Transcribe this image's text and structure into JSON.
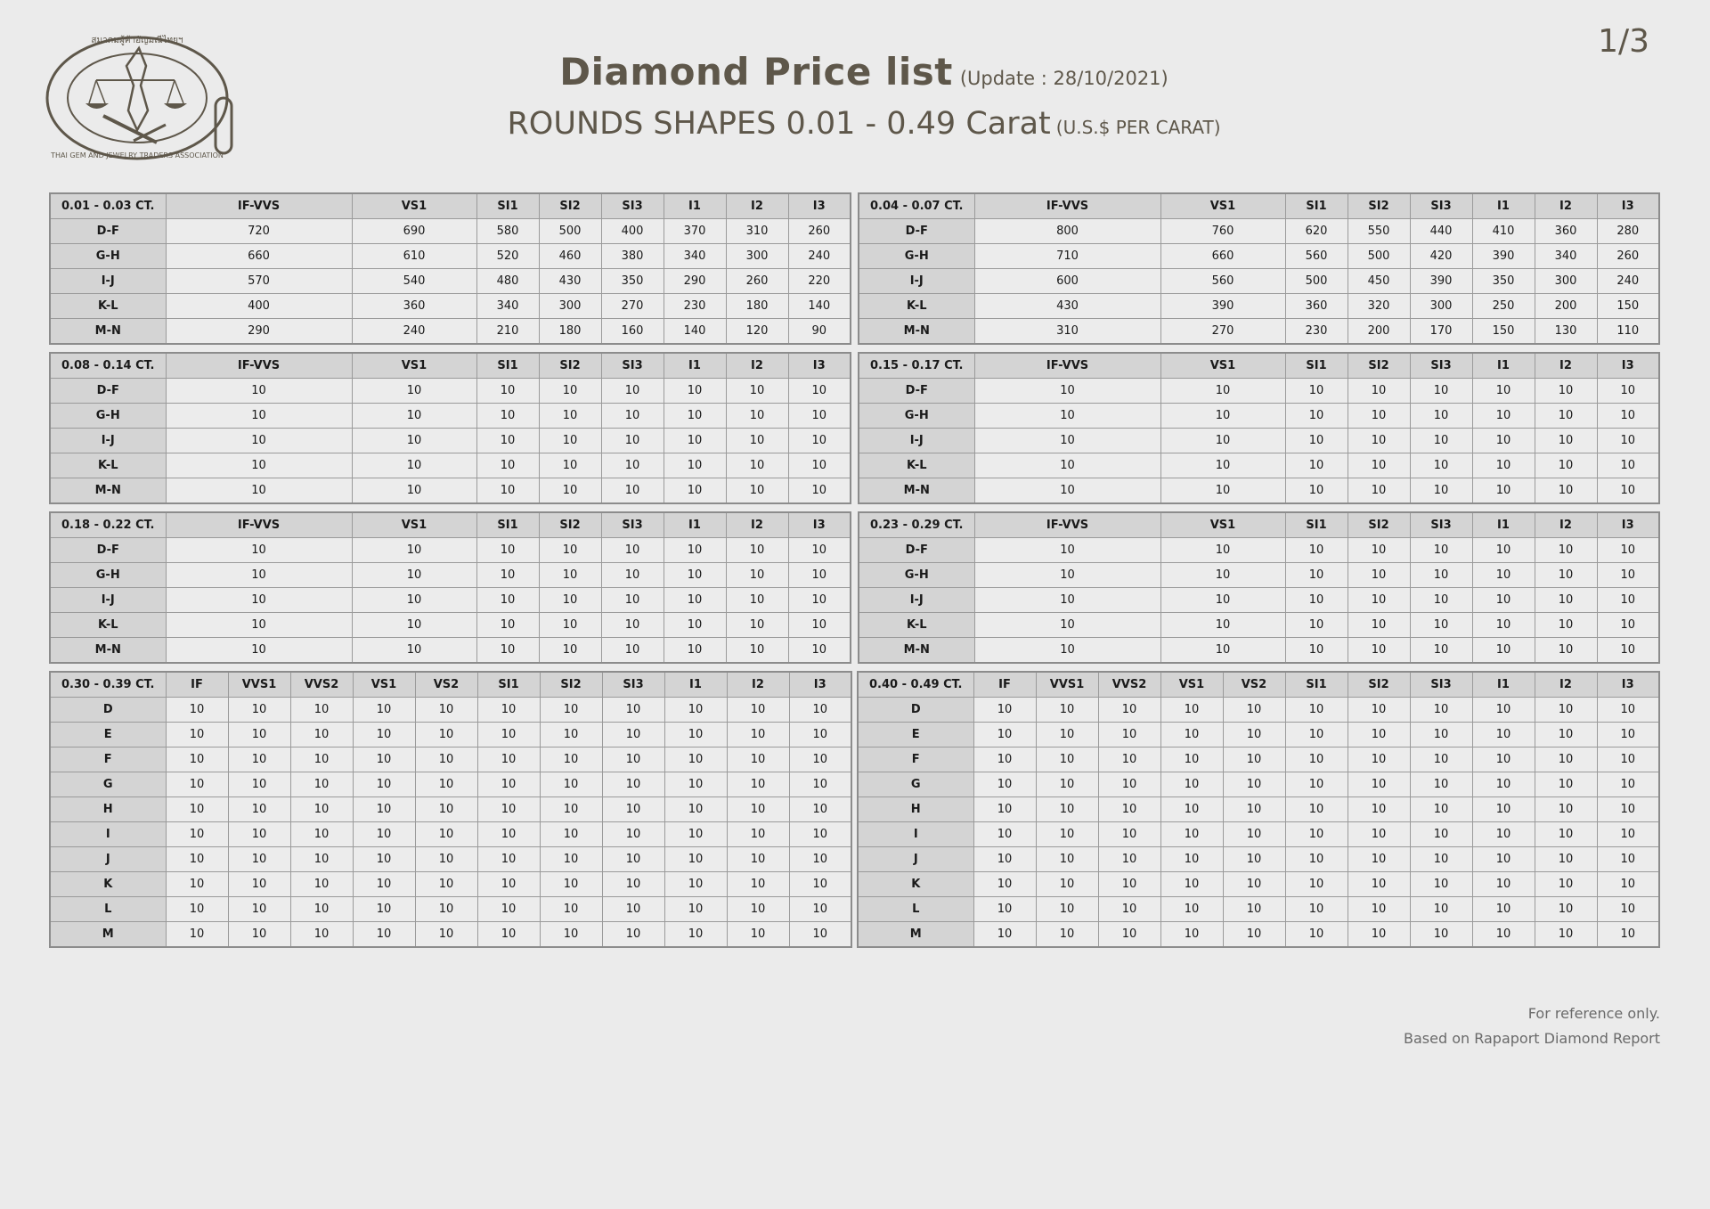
{
  "page_number": "1/3",
  "logo": {
    "top_text": "สมาคมผู้ค้าอัญมณีไทยและเครื่องประดับ",
    "bottom_text": "THAI GEM AND JEWELRY TRADERS ASSOCIATION"
  },
  "header": {
    "title": "Diamond Price list",
    "update": "(Update : 28/10/2021)",
    "subtitle": "ROUNDS SHAPES 0.01 - 0.49 Carat",
    "unit": "(U.S.$ PER CARAT)"
  },
  "tables": [
    {
      "range": "0.01 - 0.03 CT.",
      "cols": [
        "IF-VVS",
        "VS1",
        "SI1",
        "SI2",
        "SI3",
        "I1",
        "I2",
        "I3"
      ],
      "rows": [
        {
          "label": "D-F",
          "values": [
            "720",
            "690",
            "580",
            "500",
            "400",
            "370",
            "310",
            "260"
          ]
        },
        {
          "label": "G-H",
          "values": [
            "660",
            "610",
            "520",
            "460",
            "380",
            "340",
            "300",
            "240"
          ]
        },
        {
          "label": "I-J",
          "values": [
            "570",
            "540",
            "480",
            "430",
            "350",
            "290",
            "260",
            "220"
          ]
        },
        {
          "label": "K-L",
          "values": [
            "400",
            "360",
            "340",
            "300",
            "270",
            "230",
            "180",
            "140"
          ]
        },
        {
          "label": "M-N",
          "values": [
            "290",
            "240",
            "210",
            "180",
            "160",
            "140",
            "120",
            "90"
          ]
        }
      ]
    },
    {
      "range": "0.04 - 0.07 CT.",
      "cols": [
        "IF-VVS",
        "VS1",
        "SI1",
        "SI2",
        "SI3",
        "I1",
        "I2",
        "I3"
      ],
      "rows": [
        {
          "label": "D-F",
          "values": [
            "800",
            "760",
            "620",
            "550",
            "440",
            "410",
            "360",
            "280"
          ]
        },
        {
          "label": "G-H",
          "values": [
            "710",
            "660",
            "560",
            "500",
            "420",
            "390",
            "340",
            "260"
          ]
        },
        {
          "label": "I-J",
          "values": [
            "600",
            "560",
            "500",
            "450",
            "390",
            "350",
            "300",
            "240"
          ]
        },
        {
          "label": "K-L",
          "values": [
            "430",
            "390",
            "360",
            "320",
            "300",
            "250",
            "200",
            "150"
          ]
        },
        {
          "label": "M-N",
          "values": [
            "310",
            "270",
            "230",
            "200",
            "170",
            "150",
            "130",
            "110"
          ]
        }
      ]
    },
    {
      "range": "0.08 - 0.14 CT.",
      "cols": [
        "IF-VVS",
        "VS1",
        "SI1",
        "SI2",
        "SI3",
        "I1",
        "I2",
        "I3"
      ],
      "rows": [
        {
          "label": "D-F",
          "values": [
            "10",
            "10",
            "10",
            "10",
            "10",
            "10",
            "10",
            "10"
          ]
        },
        {
          "label": "G-H",
          "values": [
            "10",
            "10",
            "10",
            "10",
            "10",
            "10",
            "10",
            "10"
          ]
        },
        {
          "label": "I-J",
          "values": [
            "10",
            "10",
            "10",
            "10",
            "10",
            "10",
            "10",
            "10"
          ]
        },
        {
          "label": "K-L",
          "values": [
            "10",
            "10",
            "10",
            "10",
            "10",
            "10",
            "10",
            "10"
          ]
        },
        {
          "label": "M-N",
          "values": [
            "10",
            "10",
            "10",
            "10",
            "10",
            "10",
            "10",
            "10"
          ]
        }
      ]
    },
    {
      "range": "0.15 - 0.17 CT.",
      "cols": [
        "IF-VVS",
        "VS1",
        "SI1",
        "SI2",
        "SI3",
        "I1",
        "I2",
        "I3"
      ],
      "rows": [
        {
          "label": "D-F",
          "values": [
            "10",
            "10",
            "10",
            "10",
            "10",
            "10",
            "10",
            "10"
          ]
        },
        {
          "label": "G-H",
          "values": [
            "10",
            "10",
            "10",
            "10",
            "10",
            "10",
            "10",
            "10"
          ]
        },
        {
          "label": "I-J",
          "values": [
            "10",
            "10",
            "10",
            "10",
            "10",
            "10",
            "10",
            "10"
          ]
        },
        {
          "label": "K-L",
          "values": [
            "10",
            "10",
            "10",
            "10",
            "10",
            "10",
            "10",
            "10"
          ]
        },
        {
          "label": "M-N",
          "values": [
            "10",
            "10",
            "10",
            "10",
            "10",
            "10",
            "10",
            "10"
          ]
        }
      ]
    },
    {
      "range": "0.18 - 0.22 CT.",
      "cols": [
        "IF-VVS",
        "VS1",
        "SI1",
        "SI2",
        "SI3",
        "I1",
        "I2",
        "I3"
      ],
      "rows": [
        {
          "label": "D-F",
          "values": [
            "10",
            "10",
            "10",
            "10",
            "10",
            "10",
            "10",
            "10"
          ]
        },
        {
          "label": "G-H",
          "values": [
            "10",
            "10",
            "10",
            "10",
            "10",
            "10",
            "10",
            "10"
          ]
        },
        {
          "label": "I-J",
          "values": [
            "10",
            "10",
            "10",
            "10",
            "10",
            "10",
            "10",
            "10"
          ]
        },
        {
          "label": "K-L",
          "values": [
            "10",
            "10",
            "10",
            "10",
            "10",
            "10",
            "10",
            "10"
          ]
        },
        {
          "label": "M-N",
          "values": [
            "10",
            "10",
            "10",
            "10",
            "10",
            "10",
            "10",
            "10"
          ]
        }
      ]
    },
    {
      "range": "0.23 - 0.29 CT.",
      "cols": [
        "IF-VVS",
        "VS1",
        "SI1",
        "SI2",
        "SI3",
        "I1",
        "I2",
        "I3"
      ],
      "rows": [
        {
          "label": "D-F",
          "values": [
            "10",
            "10",
            "10",
            "10",
            "10",
            "10",
            "10",
            "10"
          ]
        },
        {
          "label": "G-H",
          "values": [
            "10",
            "10",
            "10",
            "10",
            "10",
            "10",
            "10",
            "10"
          ]
        },
        {
          "label": "I-J",
          "values": [
            "10",
            "10",
            "10",
            "10",
            "10",
            "10",
            "10",
            "10"
          ]
        },
        {
          "label": "K-L",
          "values": [
            "10",
            "10",
            "10",
            "10",
            "10",
            "10",
            "10",
            "10"
          ]
        },
        {
          "label": "M-N",
          "values": [
            "10",
            "10",
            "10",
            "10",
            "10",
            "10",
            "10",
            "10"
          ]
        }
      ]
    },
    {
      "range": "0.30 - 0.39 CT.",
      "cols": [
        "IF",
        "VVS1",
        "VVS2",
        "VS1",
        "VS2",
        "SI1",
        "SI2",
        "SI3",
        "I1",
        "I2",
        "I3"
      ],
      "rows": [
        {
          "label": "D",
          "values": [
            "10",
            "10",
            "10",
            "10",
            "10",
            "10",
            "10",
            "10",
            "10",
            "10",
            "10"
          ]
        },
        {
          "label": "E",
          "values": [
            "10",
            "10",
            "10",
            "10",
            "10",
            "10",
            "10",
            "10",
            "10",
            "10",
            "10"
          ]
        },
        {
          "label": "F",
          "values": [
            "10",
            "10",
            "10",
            "10",
            "10",
            "10",
            "10",
            "10",
            "10",
            "10",
            "10"
          ]
        },
        {
          "label": "G",
          "values": [
            "10",
            "10",
            "10",
            "10",
            "10",
            "10",
            "10",
            "10",
            "10",
            "10",
            "10"
          ]
        },
        {
          "label": "H",
          "values": [
            "10",
            "10",
            "10",
            "10",
            "10",
            "10",
            "10",
            "10",
            "10",
            "10",
            "10"
          ]
        },
        {
          "label": "I",
          "values": [
            "10",
            "10",
            "10",
            "10",
            "10",
            "10",
            "10",
            "10",
            "10",
            "10",
            "10"
          ]
        },
        {
          "label": "J",
          "values": [
            "10",
            "10",
            "10",
            "10",
            "10",
            "10",
            "10",
            "10",
            "10",
            "10",
            "10"
          ]
        },
        {
          "label": "K",
          "values": [
            "10",
            "10",
            "10",
            "10",
            "10",
            "10",
            "10",
            "10",
            "10",
            "10",
            "10"
          ]
        },
        {
          "label": "L",
          "values": [
            "10",
            "10",
            "10",
            "10",
            "10",
            "10",
            "10",
            "10",
            "10",
            "10",
            "10"
          ]
        },
        {
          "label": "M",
          "values": [
            "10",
            "10",
            "10",
            "10",
            "10",
            "10",
            "10",
            "10",
            "10",
            "10",
            "10"
          ]
        }
      ]
    },
    {
      "range": "0.40 - 0.49 CT.",
      "cols": [
        "IF",
        "VVS1",
        "VVS2",
        "VS1",
        "VS2",
        "SI1",
        "SI2",
        "SI3",
        "I1",
        "I2",
        "I3"
      ],
      "rows": [
        {
          "label": "D",
          "values": [
            "10",
            "10",
            "10",
            "10",
            "10",
            "10",
            "10",
            "10",
            "10",
            "10",
            "10"
          ]
        },
        {
          "label": "E",
          "values": [
            "10",
            "10",
            "10",
            "10",
            "10",
            "10",
            "10",
            "10",
            "10",
            "10",
            "10"
          ]
        },
        {
          "label": "F",
          "values": [
            "10",
            "10",
            "10",
            "10",
            "10",
            "10",
            "10",
            "10",
            "10",
            "10",
            "10"
          ]
        },
        {
          "label": "G",
          "values": [
            "10",
            "10",
            "10",
            "10",
            "10",
            "10",
            "10",
            "10",
            "10",
            "10",
            "10"
          ]
        },
        {
          "label": "H",
          "values": [
            "10",
            "10",
            "10",
            "10",
            "10",
            "10",
            "10",
            "10",
            "10",
            "10",
            "10"
          ]
        },
        {
          "label": "I",
          "values": [
            "10",
            "10",
            "10",
            "10",
            "10",
            "10",
            "10",
            "10",
            "10",
            "10",
            "10"
          ]
        },
        {
          "label": "J",
          "values": [
            "10",
            "10",
            "10",
            "10",
            "10",
            "10",
            "10",
            "10",
            "10",
            "10",
            "10"
          ]
        },
        {
          "label": "K",
          "values": [
            "10",
            "10",
            "10",
            "10",
            "10",
            "10",
            "10",
            "10",
            "10",
            "10",
            "10"
          ]
        },
        {
          "label": "L",
          "values": [
            "10",
            "10",
            "10",
            "10",
            "10",
            "10",
            "10",
            "10",
            "10",
            "10",
            "10"
          ]
        },
        {
          "label": "M",
          "values": [
            "10",
            "10",
            "10",
            "10",
            "10",
            "10",
            "10",
            "10",
            "10",
            "10",
            "10"
          ]
        }
      ]
    }
  ],
  "footer": {
    "line1": "For reference only.",
    "line2": "Based on Rapaport Diamond Report"
  },
  "colors": {
    "background": "#ebebeb",
    "title": "#5e574a",
    "header_cell": "#d4d4d4",
    "value_cell": "#ececec",
    "border": "#9a9a9a"
  }
}
